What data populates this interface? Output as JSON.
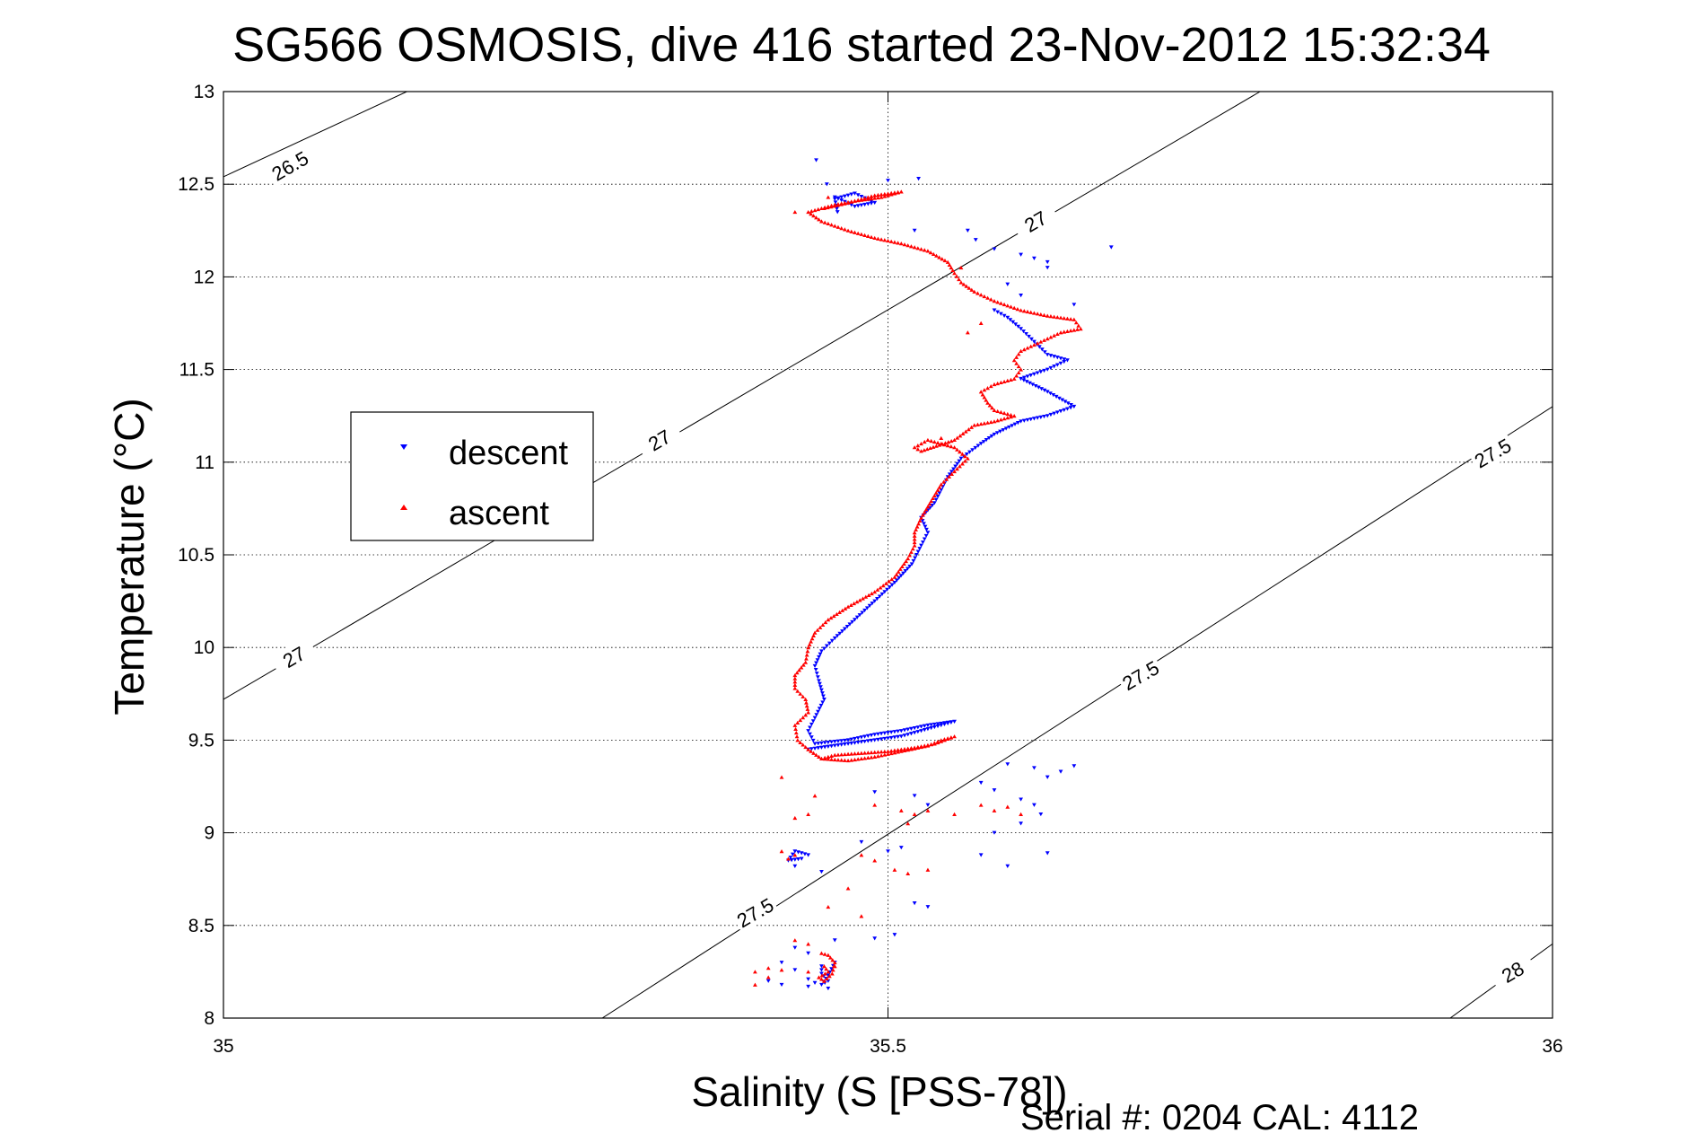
{
  "chart_data": {
    "type": "scatter",
    "title": "SG566 OSMOSIS, dive 416 started 23-Nov-2012 15:32:34",
    "xlabel": "Salinity (S [PSS-78])",
    "ylabel": "Temperature (°C)",
    "xlim": [
      35,
      36
    ],
    "ylim": [
      8,
      13
    ],
    "x_ticks": [
      35,
      35.5,
      36
    ],
    "x_tick_labels": [
      "35",
      "35.5",
      "36"
    ],
    "y_ticks": [
      8,
      8.5,
      9,
      9.5,
      10,
      10.5,
      11,
      11.5,
      12,
      12.5,
      13
    ],
    "y_tick_labels": [
      "8",
      "8.5",
      "9",
      "9.5",
      "10",
      "10.5",
      "11",
      "11.5",
      "12",
      "12.5",
      "13"
    ],
    "grid": true,
    "legend": {
      "position": "left",
      "entries": [
        "descent",
        "ascent"
      ]
    },
    "footer": "Serial #: 0204  CAL: 4112",
    "density_contours": [
      {
        "sigma": 26.5,
        "label": "26.5",
        "points": [
          [
            35.0,
            12.54
          ],
          [
            35.138,
            13.0
          ]
        ]
      },
      {
        "sigma": 27.0,
        "label": "27",
        "points": [
          [
            35.0,
            9.72
          ],
          [
            35.78,
            13.0
          ]
        ]
      },
      {
        "sigma": 27.5,
        "label": "27.5",
        "points": [
          [
            35.285,
            8.0
          ],
          [
            36.0,
            11.3
          ]
        ]
      },
      {
        "sigma": 28.0,
        "label": "28",
        "points": [
          [
            35.923,
            8.0
          ],
          [
            36.0,
            8.4
          ]
        ]
      }
    ],
    "contour_labels": [
      {
        "text": "26.5",
        "x": 35.05,
        "y": 12.6,
        "angle": -30
      },
      {
        "text": "27",
        "x": 35.611,
        "y": 12.3,
        "angle": -30
      },
      {
        "text": "27",
        "x": 35.328,
        "y": 11.12,
        "angle": -30
      },
      {
        "text": "27",
        "x": 35.053,
        "y": 9.95,
        "angle": -30
      },
      {
        "text": "27.5",
        "x": 35.955,
        "y": 11.05,
        "angle": -30
      },
      {
        "text": "27.5",
        "x": 35.69,
        "y": 9.85,
        "angle": -30
      },
      {
        "text": "27.5",
        "x": 35.4,
        "y": 8.57,
        "angle": -30
      },
      {
        "text": "28",
        "x": 35.97,
        "y": 8.25,
        "angle": -30
      }
    ],
    "series": [
      {
        "name": "descent",
        "color": "#0000ff",
        "marker": "triangle-down",
        "path": [
          [
            35.462,
            12.35
          ],
          [
            35.46,
            12.42
          ],
          [
            35.475,
            12.45
          ],
          [
            35.49,
            12.4
          ],
          [
            35.475,
            12.38
          ],
          [
            35.46,
            12.43
          ],
          [
            35.58,
            11.82
          ],
          [
            35.59,
            11.78
          ],
          [
            35.6,
            11.72
          ],
          [
            35.61,
            11.65
          ],
          [
            35.62,
            11.58
          ],
          [
            35.635,
            11.55
          ],
          [
            35.62,
            11.5
          ],
          [
            35.6,
            11.45
          ],
          [
            35.62,
            11.38
          ],
          [
            35.64,
            11.3
          ],
          [
            35.62,
            11.25
          ],
          [
            35.6,
            11.22
          ],
          [
            35.58,
            11.15
          ],
          [
            35.57,
            11.1
          ],
          [
            35.555,
            11.02
          ],
          [
            35.545,
            10.92
          ],
          [
            35.54,
            10.85
          ],
          [
            35.535,
            10.78
          ],
          [
            35.525,
            10.7
          ],
          [
            35.53,
            10.62
          ],
          [
            35.525,
            10.55
          ],
          [
            35.518,
            10.45
          ],
          [
            35.505,
            10.35
          ],
          [
            35.49,
            10.25
          ],
          [
            35.475,
            10.15
          ],
          [
            35.46,
            10.05
          ],
          [
            35.45,
            9.98
          ],
          [
            35.445,
            9.9
          ],
          [
            35.448,
            9.82
          ],
          [
            35.452,
            9.72
          ],
          [
            35.445,
            9.62
          ],
          [
            35.44,
            9.55
          ],
          [
            35.445,
            9.48
          ],
          [
            35.47,
            9.5
          ],
          [
            35.49,
            9.53
          ],
          [
            35.51,
            9.55
          ],
          [
            35.53,
            9.58
          ],
          [
            35.55,
            9.6
          ],
          [
            35.53,
            9.56
          ],
          [
            35.51,
            9.52
          ],
          [
            35.49,
            9.5
          ],
          [
            35.47,
            9.48
          ],
          [
            35.45,
            9.46
          ],
          [
            35.44,
            9.45
          ],
          [
            35.435,
            8.86
          ],
          [
            35.425,
            8.85
          ],
          [
            35.43,
            8.9
          ],
          [
            35.44,
            8.88
          ],
          [
            35.45,
            8.28
          ],
          [
            35.45,
            8.24
          ],
          [
            35.455,
            8.2
          ],
          [
            35.45,
            8.18
          ],
          [
            35.455,
            8.23
          ],
          [
            35.46,
            8.3
          ]
        ],
        "scatter": [
          [
            35.446,
            12.63
          ],
          [
            35.454,
            12.5
          ],
          [
            35.5,
            12.52
          ],
          [
            35.523,
            12.53
          ],
          [
            35.52,
            12.25
          ],
          [
            35.56,
            12.25
          ],
          [
            35.566,
            12.2
          ],
          [
            35.58,
            12.15
          ],
          [
            35.6,
            12.12
          ],
          [
            35.61,
            12.1
          ],
          [
            35.62,
            12.08
          ],
          [
            35.62,
            12.05
          ],
          [
            35.59,
            11.96
          ],
          [
            35.6,
            11.9
          ],
          [
            35.64,
            11.85
          ],
          [
            35.668,
            12.16
          ],
          [
            35.59,
            9.37
          ],
          [
            35.61,
            9.35
          ],
          [
            35.63,
            9.33
          ],
          [
            35.64,
            9.36
          ],
          [
            35.62,
            9.3
          ],
          [
            35.57,
            9.27
          ],
          [
            35.58,
            9.23
          ],
          [
            35.6,
            9.18
          ],
          [
            35.61,
            9.15
          ],
          [
            35.615,
            9.1
          ],
          [
            35.6,
            9.05
          ],
          [
            35.58,
            9.0
          ],
          [
            35.57,
            8.88
          ],
          [
            35.59,
            8.82
          ],
          [
            35.62,
            8.89
          ],
          [
            35.49,
            9.22
          ],
          [
            35.52,
            9.2
          ],
          [
            35.53,
            9.15
          ],
          [
            35.48,
            8.95
          ],
          [
            35.5,
            8.9
          ],
          [
            35.51,
            8.92
          ],
          [
            35.43,
            8.82
          ],
          [
            35.45,
            8.79
          ],
          [
            35.52,
            8.62
          ],
          [
            35.53,
            8.6
          ],
          [
            35.505,
            8.45
          ],
          [
            35.46,
            8.42
          ],
          [
            35.49,
            8.43
          ],
          [
            35.43,
            8.38
          ],
          [
            35.44,
            8.35
          ],
          [
            35.42,
            8.3
          ],
          [
            35.43,
            8.26
          ],
          [
            35.41,
            8.2
          ],
          [
            35.42,
            8.18
          ],
          [
            35.44,
            8.17
          ],
          [
            35.455,
            8.16
          ],
          [
            35.44,
            8.21
          ],
          [
            35.445,
            8.19
          ]
        ]
      },
      {
        "name": "ascent",
        "color": "#ff0000",
        "marker": "triangle-up",
        "path": [
          [
            35.452,
            12.37
          ],
          [
            35.47,
            12.4
          ],
          [
            35.49,
            12.44
          ],
          [
            35.51,
            12.46
          ],
          [
            35.495,
            12.43
          ],
          [
            35.475,
            12.41
          ],
          [
            35.46,
            12.39
          ],
          [
            35.44,
            12.35
          ],
          [
            35.45,
            12.3
          ],
          [
            35.47,
            12.25
          ],
          [
            35.49,
            12.21
          ],
          [
            35.51,
            12.18
          ],
          [
            35.53,
            12.14
          ],
          [
            35.545,
            12.08
          ],
          [
            35.55,
            12.02
          ],
          [
            35.555,
            11.97
          ],
          [
            35.565,
            11.92
          ],
          [
            35.58,
            11.87
          ],
          [
            35.6,
            11.82
          ],
          [
            35.62,
            11.79
          ],
          [
            35.64,
            11.77
          ],
          [
            35.645,
            11.72
          ],
          [
            35.63,
            11.7
          ],
          [
            35.615,
            11.65
          ],
          [
            35.6,
            11.6
          ],
          [
            35.595,
            11.55
          ],
          [
            35.6,
            11.5
          ],
          [
            35.595,
            11.45
          ],
          [
            35.58,
            11.42
          ],
          [
            35.57,
            11.38
          ],
          [
            35.575,
            11.32
          ],
          [
            35.58,
            11.28
          ],
          [
            35.595,
            11.25
          ],
          [
            35.58,
            11.22
          ],
          [
            35.565,
            11.2
          ],
          [
            35.55,
            11.12
          ],
          [
            35.525,
            11.06
          ],
          [
            35.52,
            11.08
          ],
          [
            35.53,
            11.12
          ],
          [
            35.55,
            11.08
          ],
          [
            35.56,
            11.02
          ],
          [
            35.55,
            10.95
          ],
          [
            35.54,
            10.88
          ],
          [
            35.535,
            10.82
          ],
          [
            35.53,
            10.76
          ],
          [
            35.525,
            10.7
          ],
          [
            35.52,
            10.62
          ],
          [
            35.52,
            10.55
          ],
          [
            35.515,
            10.48
          ],
          [
            35.505,
            10.38
          ],
          [
            35.49,
            10.3
          ],
          [
            35.47,
            10.22
          ],
          [
            35.455,
            10.15
          ],
          [
            35.445,
            10.08
          ],
          [
            35.44,
            10.0
          ],
          [
            35.438,
            9.92
          ],
          [
            35.43,
            9.85
          ],
          [
            35.43,
            9.78
          ],
          [
            35.438,
            9.72
          ],
          [
            35.44,
            9.65
          ],
          [
            35.43,
            9.58
          ],
          [
            35.432,
            9.5
          ],
          [
            35.44,
            9.45
          ],
          [
            35.45,
            9.4
          ],
          [
            35.47,
            9.39
          ],
          [
            35.49,
            9.41
          ],
          [
            35.51,
            9.44
          ],
          [
            35.53,
            9.47
          ],
          [
            35.54,
            9.5
          ],
          [
            35.55,
            9.52
          ],
          [
            35.535,
            9.48
          ],
          [
            35.52,
            9.46
          ],
          [
            35.5,
            9.44
          ],
          [
            35.48,
            9.43
          ],
          [
            35.46,
            9.42
          ],
          [
            35.45,
            9.4
          ],
          [
            35.452,
            8.28
          ],
          [
            35.455,
            8.25
          ],
          [
            35.448,
            8.22
          ],
          [
            35.452,
            8.2
          ],
          [
            35.458,
            8.24
          ],
          [
            35.46,
            8.3
          ],
          [
            35.455,
            8.34
          ],
          [
            35.45,
            8.35
          ]
        ],
        "scatter": [
          [
            35.455,
            12.43
          ],
          [
            35.43,
            12.35
          ],
          [
            35.555,
            12.05
          ],
          [
            35.57,
            11.75
          ],
          [
            35.56,
            11.7
          ],
          [
            35.54,
            11.13
          ],
          [
            35.53,
            9.12
          ],
          [
            35.55,
            9.1
          ],
          [
            35.57,
            9.15
          ],
          [
            35.58,
            9.12
          ],
          [
            35.6,
            9.1
          ],
          [
            35.59,
            9.14
          ],
          [
            35.49,
            9.15
          ],
          [
            35.51,
            9.12
          ],
          [
            35.52,
            9.1
          ],
          [
            35.515,
            9.05
          ],
          [
            35.505,
            8.8
          ],
          [
            35.515,
            8.78
          ],
          [
            35.53,
            8.8
          ],
          [
            35.48,
            8.88
          ],
          [
            35.49,
            8.85
          ],
          [
            35.42,
            8.9
          ],
          [
            35.425,
            8.86
          ],
          [
            35.43,
            8.88
          ],
          [
            35.42,
            9.3
          ],
          [
            35.445,
            9.2
          ],
          [
            35.44,
            9.1
          ],
          [
            35.43,
            9.08
          ],
          [
            35.47,
            8.7
          ],
          [
            35.455,
            8.6
          ],
          [
            35.48,
            8.55
          ],
          [
            35.43,
            8.42
          ],
          [
            35.44,
            8.4
          ],
          [
            35.42,
            8.26
          ],
          [
            35.41,
            8.27
          ],
          [
            35.4,
            8.25
          ],
          [
            35.41,
            8.22
          ],
          [
            35.4,
            8.18
          ],
          [
            35.44,
            8.25
          ],
          [
            35.46,
            8.28
          ]
        ]
      }
    ]
  }
}
